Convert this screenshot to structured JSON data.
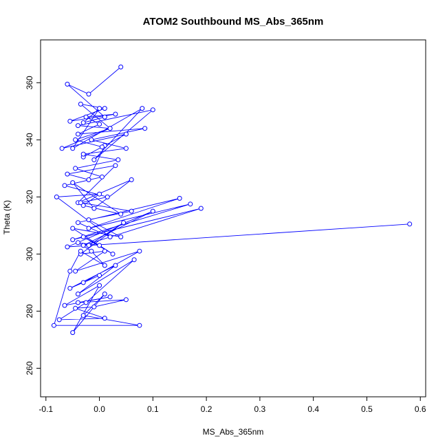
{
  "chart_data": {
    "type": "line",
    "title": "ATOM2 Southbound MS_Abs_365nm",
    "xlabel": "MS_Abs_365nm",
    "ylabel": "Theta (K)",
    "xlim": [
      -0.11,
      0.61
    ],
    "ylim": [
      250,
      375
    ],
    "xticks": [
      -0.1,
      0,
      0.1,
      0.2,
      0.3,
      0.4,
      0.5,
      0.6
    ],
    "xtick_labels": [
      "-0.1",
      "0.0",
      "0.1",
      "0.2",
      "0.3",
      "0.4",
      "0.5",
      "0.6"
    ],
    "yticks": [
      260,
      280,
      300,
      320,
      340,
      360
    ],
    "ytick_labels": [
      "260",
      "280",
      "300",
      "320",
      "340",
      "360"
    ],
    "grid": false,
    "series_color": "#0000ff",
    "marker": "open-circle",
    "series": [
      {
        "x": [
          0.04,
          -0.02,
          -0.06,
          0.01,
          -0.03,
          0.0,
          -0.05,
          0.08,
          -0.01,
          0.1,
          -0.04,
          0.02,
          -0.07,
          0.05,
          -0.03,
          0.01,
          -0.02,
          -0.06,
          0.03,
          -0.04,
          0.06,
          -0.01,
          -0.05,
          0.04,
          -0.03,
          0.0,
          -0.08,
          0.02,
          -0.04,
          0.15,
          -0.02,
          0.17,
          -0.05,
          0.19,
          -0.03,
          0.1,
          -0.06,
          0.58,
          -0.02,
          0.045,
          -0.035,
          0.01,
          -0.045,
          0.075,
          -0.03,
          0.0,
          -0.055,
          0.03,
          -0.04,
          0.065,
          -0.025,
          -0.075,
          0.01,
          -0.045,
          -0.01,
          0.05,
          -0.04,
          0.02,
          -0.065,
          0.0,
          -0.05,
          0.01,
          -0.03,
          0.075,
          -0.085,
          -0.055,
          -0.035,
          0.01,
          -0.015,
          -0.04,
          0.0,
          -0.03,
          0.025,
          -0.05,
          0.04,
          -0.02,
          0.06,
          -0.035,
          0.015,
          -0.065,
          0.005,
          -0.045,
          0.035,
          -0.03,
          0.05,
          -0.015,
          0.085,
          -0.04,
          0.0,
          -0.025,
          0.03,
          -0.055,
          0.01,
          -0.035,
          0.02,
          -0.045,
          0.005
        ],
        "y": [
          365.5,
          356.0,
          359.5,
          348.0,
          346.0,
          351.0,
          337.0,
          351.0,
          333.0,
          350.5,
          345.0,
          344.0,
          337.0,
          342.0,
          334.0,
          338.0,
          326.0,
          328.0,
          331.0,
          318.0,
          326.0,
          316.0,
          325.0,
          314.0,
          317.0,
          321.0,
          320.0,
          306.0,
          311.0,
          319.5,
          309.0,
          317.5,
          305.0,
          316.0,
          303.0,
          315.0,
          302.5,
          310.5,
          303.0,
          311.0,
          300.0,
          301.0,
          294.0,
          301.0,
          290.0,
          292.5,
          288.0,
          296.0,
          286.0,
          298.0,
          283.0,
          277.0,
          277.5,
          281.0,
          281.5,
          284.0,
          283.0,
          285.0,
          282.0,
          289.0,
          272.5,
          286.0,
          278.5,
          275.0,
          275.0,
          294.0,
          301.0,
          296.0,
          301.0,
          304.0,
          303.0,
          306.0,
          300.0,
          309.0,
          306.0,
          312.0,
          315.0,
          318.0,
          320.0,
          324.0,
          327.0,
          330.0,
          333.0,
          335.0,
          337.0,
          340.0,
          344.0,
          342.0,
          345.5,
          348.0,
          349.0,
          346.5,
          351.0,
          352.5,
          344.0,
          340.0,
          337.5
        ]
      }
    ]
  }
}
